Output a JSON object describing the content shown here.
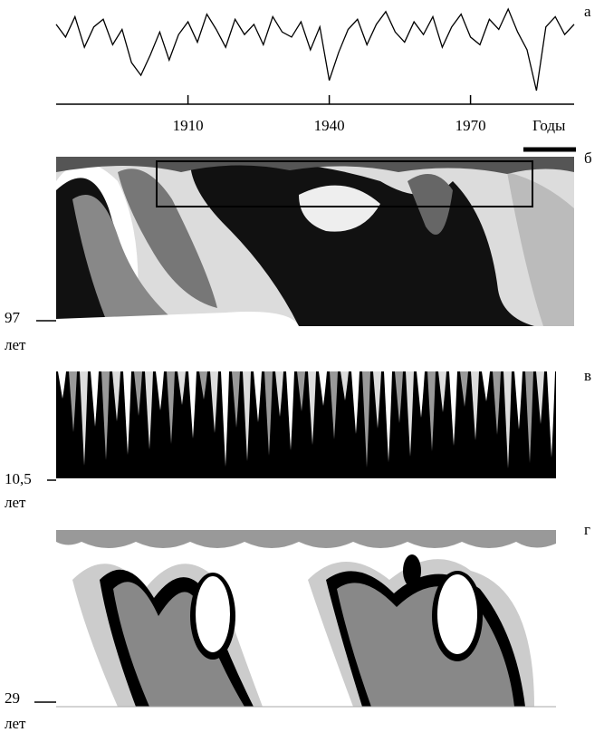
{
  "chart_data": {
    "type": "line",
    "panel_label": "а",
    "x_label": "Годы",
    "x": [
      1882,
      1884,
      1886,
      1888,
      1890,
      1892,
      1894,
      1896,
      1898,
      1900,
      1902,
      1904,
      1906,
      1908,
      1910,
      1912,
      1914,
      1916,
      1918,
      1920,
      1922,
      1924,
      1926,
      1928,
      1930,
      1932,
      1934,
      1936,
      1938,
      1940,
      1942,
      1944,
      1946,
      1948,
      1950,
      1952,
      1954,
      1956,
      1958,
      1960,
      1962,
      1964,
      1966,
      1968,
      1970,
      1972,
      1974,
      1976,
      1978,
      1980,
      1982,
      1984,
      1986,
      1988,
      1990,
      1992
    ],
    "values": [
      0.6,
      0.1,
      0.9,
      -0.3,
      0.5,
      0.8,
      -0.2,
      0.4,
      -0.9,
      -1.4,
      -0.6,
      0.3,
      -0.8,
      0.2,
      0.7,
      -0.1,
      1.0,
      0.4,
      -0.3,
      0.8,
      0.2,
      0.6,
      -0.2,
      0.9,
      0.3,
      0.1,
      0.7,
      -0.4,
      0.5,
      -1.6,
      -0.5,
      0.4,
      0.8,
      -0.2,
      0.6,
      1.1,
      0.3,
      -0.1,
      0.7,
      0.2,
      0.9,
      -0.3,
      0.5,
      1.0,
      0.1,
      -0.2,
      0.8,
      0.4,
      1.2,
      0.3,
      -0.4,
      -2.0,
      0.5,
      0.9,
      0.2,
      0.6
    ],
    "xlim": [
      1882,
      1992
    ],
    "xticks": [
      1910,
      1940,
      1970
    ],
    "color": "#000000"
  },
  "panels": [
    {
      "label": "б",
      "scale": "97",
      "unit": "лет"
    },
    {
      "label": "в",
      "scale": "10,5",
      "unit": "лет"
    },
    {
      "label": "г",
      "scale": "29",
      "unit": "лет"
    }
  ]
}
